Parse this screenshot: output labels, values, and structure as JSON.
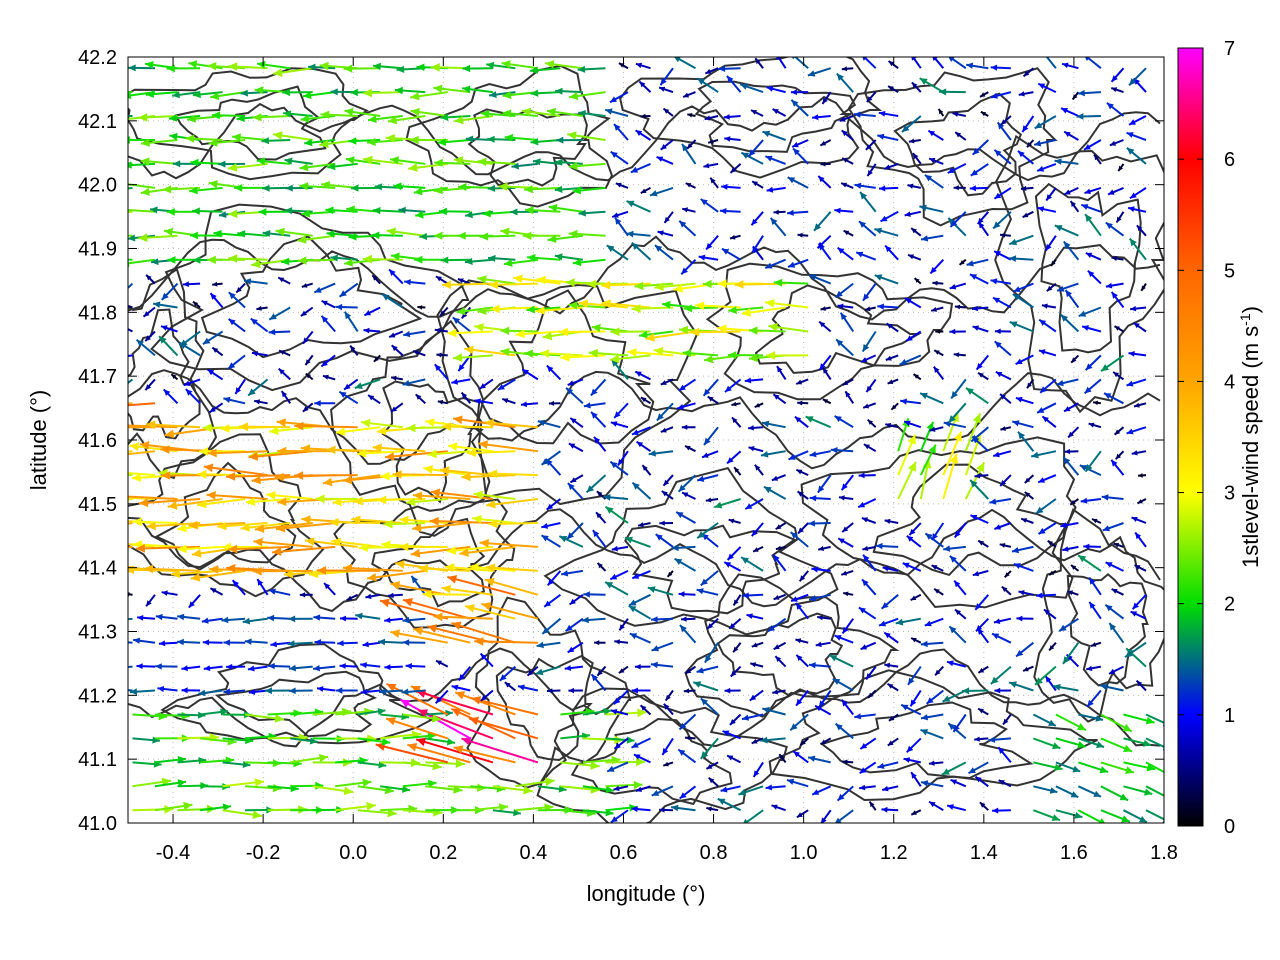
{
  "chart_data": {
    "type": "vector_field_contour",
    "xlabel": "longitude (°)",
    "ylabel": "latitude (°)",
    "colorbar_label_main": "1stlevel-wind speed (m s",
    "colorbar_label_sup": "-1",
    "colorbar_label_close": ")",
    "xlim": [
      -0.5,
      1.8
    ],
    "ylim": [
      41.0,
      42.2
    ],
    "x_ticks": [
      -0.4,
      -0.2,
      0.0,
      0.2,
      0.4,
      0.6,
      0.8,
      1.0,
      1.2,
      1.4,
      1.6,
      1.8
    ],
    "x_tick_labels": [
      "-0.4",
      "-0.2",
      "0.0",
      "0.2",
      "0.4",
      "0.6",
      "0.8",
      "1.0",
      "1.2",
      "1.4",
      "1.6",
      "1.8"
    ],
    "y_ticks": [
      41.0,
      41.1,
      41.2,
      41.3,
      41.4,
      41.5,
      41.6,
      41.7,
      41.8,
      41.9,
      42.0,
      42.1,
      42.2
    ],
    "y_tick_labels": [
      "41.0",
      "41.1",
      "41.2",
      "41.3",
      "41.4",
      "41.5",
      "41.6",
      "41.7",
      "41.8",
      "41.9",
      "42.0",
      "42.1",
      "42.2"
    ],
    "colorbar_range": [
      0,
      7
    ],
    "colorbar_ticks": [
      0,
      1,
      2,
      3,
      4,
      5,
      6,
      7
    ],
    "colorbar_tick_labels": [
      "0",
      "1",
      "2",
      "3",
      "4",
      "5",
      "6",
      "7"
    ],
    "colorbar_stops": [
      {
        "v": 0,
        "color": "#000000"
      },
      {
        "v": 1,
        "color": "#0000ff"
      },
      {
        "v": 2,
        "color": "#00dd00"
      },
      {
        "v": 3,
        "color": "#ffff00"
      },
      {
        "v": 4,
        "color": "#ffa500"
      },
      {
        "v": 5,
        "color": "#ff6600"
      },
      {
        "v": 6,
        "color": "#ff0000"
      },
      {
        "v": 7,
        "color": "#ff00ff"
      }
    ],
    "grid": "dotted",
    "contour_color": "#333333",
    "wind_regions": [
      {
        "lon": [
          -0.5,
          0.45
        ],
        "lat": [
          41.38,
          41.64
        ],
        "u": -3.6,
        "v": 0.0,
        "speed": 3.6
      },
      {
        "lon": [
          -0.5,
          -0.4
        ],
        "lat": [
          41.6,
          41.68
        ],
        "u": -4.6,
        "v": 0.1,
        "speed": 4.6
      },
      {
        "lon": [
          0.2,
          0.45
        ],
        "lat": [
          41.28,
          41.4
        ],
        "u": -3.8,
        "v": 0.6,
        "speed": 4.0
      },
      {
        "lon": [
          0.18,
          0.45
        ],
        "lat": [
          41.09,
          41.2
        ],
        "u": -3.5,
        "v": 1.4,
        "speed": 5.8
      },
      {
        "lon": [
          0.3,
          1.05
        ],
        "lat": [
          41.72,
          41.86
        ],
        "u": -3.2,
        "v": 0.0,
        "speed": 2.8
      },
      {
        "lon": [
          -0.5,
          0.6
        ],
        "lat": [
          41.88,
          42.2
        ],
        "u": -2.6,
        "v": 0.0,
        "speed": 2.1
      },
      {
        "lon": [
          -0.5,
          0.6
        ],
        "lat": [
          41.02,
          41.18
        ],
        "u": 2.4,
        "v": 0.0,
        "speed": 2.2
      },
      {
        "lon": [
          -0.5,
          0.2
        ],
        "lat": [
          41.2,
          41.34
        ],
        "u": -1.8,
        "v": 0.0,
        "speed": 1.2
      },
      {
        "lon": [
          1.5,
          1.8
        ],
        "lat": [
          41.02,
          41.18
        ],
        "u": 1.6,
        "v": -0.6,
        "speed": 1.8
      },
      {
        "lon": [
          1.18,
          1.4
        ],
        "lat": [
          41.48,
          41.62
        ],
        "u": 0.5,
        "v": 1.4,
        "speed": 2.6
      }
    ],
    "default_wind": {
      "u": -1.2,
      "v": 0.0,
      "speed": 0.9
    }
  }
}
